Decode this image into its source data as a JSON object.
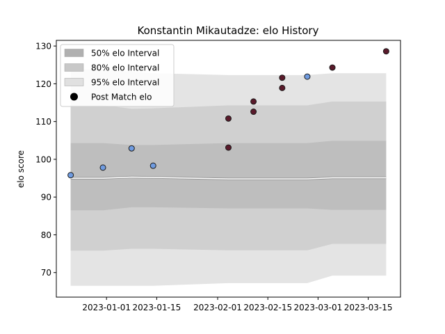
{
  "chart_data": {
    "type": "scatter",
    "title": "Konstantin Mikautadze: elo History",
    "xlabel": "",
    "ylabel": "elo score",
    "xlim": [
      "2022-12-18",
      "2023-03-24"
    ],
    "ylim": [
      63.5,
      131.5
    ],
    "yticks": [
      70,
      80,
      90,
      100,
      110,
      120,
      130
    ],
    "xticks": [
      {
        "date": "2023-01-01",
        "label": "2023-01-01"
      },
      {
        "date": "2023-01-15",
        "label": "2023-01-15"
      },
      {
        "date": "2023-02-01",
        "label": "2023-02-01"
      },
      {
        "date": "2023-02-15",
        "label": "2023-02-15"
      },
      {
        "date": "2023-03-01",
        "label": "2023-03-01"
      },
      {
        "date": "2023-03-15",
        "label": "2023-03-15"
      }
    ],
    "band_dates": [
      "2022-12-22",
      "2022-12-31",
      "2023-01-08",
      "2023-01-14",
      "2023-02-04",
      "2023-02-11",
      "2023-02-19",
      "2023-02-26",
      "2023-03-05",
      "2023-03-20"
    ],
    "mean": [
      95.0,
      95.0,
      95.3,
      95.2,
      94.8,
      94.8,
      94.8,
      94.8,
      95.1,
      95.1
    ],
    "bands": [
      {
        "name": "95% elo Interval",
        "color": "#e4e4e4",
        "lower": [
          66.5,
          66.5,
          66.5,
          66.5,
          67.2,
          67.2,
          67.2,
          67.2,
          69.2,
          69.2
        ],
        "upper": [
          123.8,
          123.8,
          123.2,
          122.8,
          122.3,
          122.3,
          122.3,
          122.3,
          122.8,
          122.8
        ]
      },
      {
        "name": "80% elo Interval",
        "color": "#d0d0d0",
        "lower": [
          75.8,
          75.8,
          76.3,
          76.3,
          75.9,
          75.9,
          75.9,
          75.9,
          77.6,
          77.6
        ],
        "upper": [
          114.3,
          114.3,
          113.4,
          113.5,
          114.3,
          114.3,
          114.3,
          114.3,
          115.3,
          115.3
        ]
      },
      {
        "name": "50% elo Interval",
        "color": "#bebebe",
        "lower": [
          86.5,
          86.5,
          87.3,
          87.3,
          87.0,
          87.0,
          87.0,
          87.0,
          86.6,
          86.6
        ],
        "upper": [
          104.3,
          104.3,
          103.8,
          103.8,
          104.3,
          104.3,
          104.3,
          104.3,
          104.9,
          104.9
        ]
      }
    ],
    "points": [
      {
        "date": "2022-12-22",
        "elo": 95.8,
        "result": "blue"
      },
      {
        "date": "2022-12-31",
        "elo": 97.8,
        "result": "blue"
      },
      {
        "date": "2023-01-08",
        "elo": 102.9,
        "result": "blue"
      },
      {
        "date": "2023-01-14",
        "elo": 98.3,
        "result": "blue"
      },
      {
        "date": "2023-02-04",
        "elo": 110.8,
        "result": "red"
      },
      {
        "date": "2023-02-04",
        "elo": 103.1,
        "result": "red"
      },
      {
        "date": "2023-02-11",
        "elo": 115.3,
        "result": "red"
      },
      {
        "date": "2023-02-11",
        "elo": 112.6,
        "result": "red"
      },
      {
        "date": "2023-02-19",
        "elo": 121.6,
        "result": "red"
      },
      {
        "date": "2023-02-19",
        "elo": 118.9,
        "result": "red"
      },
      {
        "date": "2023-02-26",
        "elo": 121.9,
        "result": "blue"
      },
      {
        "date": "2023-03-05",
        "elo": 124.3,
        "result": "red"
      },
      {
        "date": "2023-03-20",
        "elo": 128.6,
        "result": "red"
      }
    ],
    "point_colors": {
      "blue": "#6f9be0",
      "red": "#5a1a2b"
    },
    "mean_color": "#ffffff",
    "legend": {
      "location": "top-left",
      "entries": [
        "50% elo Interval",
        "80% elo Interval",
        "95% elo Interval",
        "Post Match elo"
      ]
    }
  }
}
